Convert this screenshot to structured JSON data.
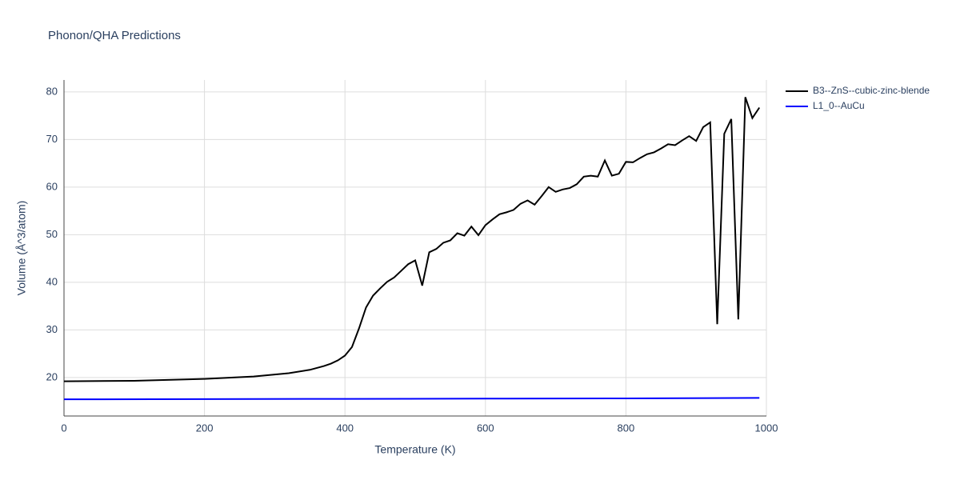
{
  "chart_data": {
    "type": "line",
    "title": "Phonon/QHA Predictions",
    "x_label": "Temperature (K)",
    "y_label": "Volume (Å^3/atom)",
    "xlim": [
      0,
      1000
    ],
    "xticks": [
      0,
      200,
      400,
      600,
      800,
      1000
    ],
    "ylim": [
      11.9,
      82.5
    ],
    "yticks": [
      20,
      30,
      40,
      50,
      60,
      70,
      80
    ],
    "grid": true,
    "legend": "right",
    "series": [
      {
        "name": "B3--ZnS--cubic-zinc-blende",
        "color": "#000000",
        "x": [
          0,
          100,
          200,
          270,
          320,
          350,
          360,
          370,
          380,
          390,
          400,
          410,
          420,
          430,
          440,
          450,
          460,
          470,
          480,
          490,
          500,
          510,
          520,
          530,
          540,
          550,
          560,
          570,
          580,
          590,
          600,
          610,
          620,
          630,
          640,
          650,
          660,
          670,
          680,
          690,
          700,
          710,
          720,
          730,
          740,
          750,
          760,
          770,
          780,
          790,
          800,
          810,
          820,
          830,
          840,
          850,
          860,
          870,
          880,
          890,
          900,
          910,
          920,
          930,
          940,
          950,
          960,
          970,
          980,
          990
        ],
        "values": [
          19.2,
          19.3,
          19.7,
          20.2,
          20.9,
          21.6,
          22.0,
          22.4,
          22.9,
          23.6,
          24.6,
          26.4,
          30.3,
          34.7,
          37.2,
          38.7,
          40.1,
          41.0,
          42.4,
          43.8,
          44.6,
          39.3,
          46.3,
          47.0,
          48.3,
          48.8,
          50.3,
          49.8,
          51.7,
          49.9,
          52.0,
          53.2,
          54.3,
          54.7,
          55.2,
          56.5,
          57.2,
          56.3,
          58.1,
          60.0,
          59.0,
          59.5,
          59.8,
          60.6,
          62.2,
          62.4,
          62.2,
          65.6,
          62.4,
          62.8,
          65.3,
          65.2,
          66.1,
          66.9,
          67.3,
          68.1,
          69.0,
          68.8,
          69.8,
          70.7,
          69.7,
          72.6,
          73.6,
          31.2,
          71.2,
          74.3,
          32.2,
          78.9,
          74.5,
          76.7
        ]
      },
      {
        "name": "L1_0--AuCu",
        "color": "#0000ff",
        "x": [
          0,
          200,
          400,
          600,
          800,
          990
        ],
        "values": [
          15.4,
          15.45,
          15.5,
          15.55,
          15.6,
          15.7
        ]
      }
    ]
  }
}
